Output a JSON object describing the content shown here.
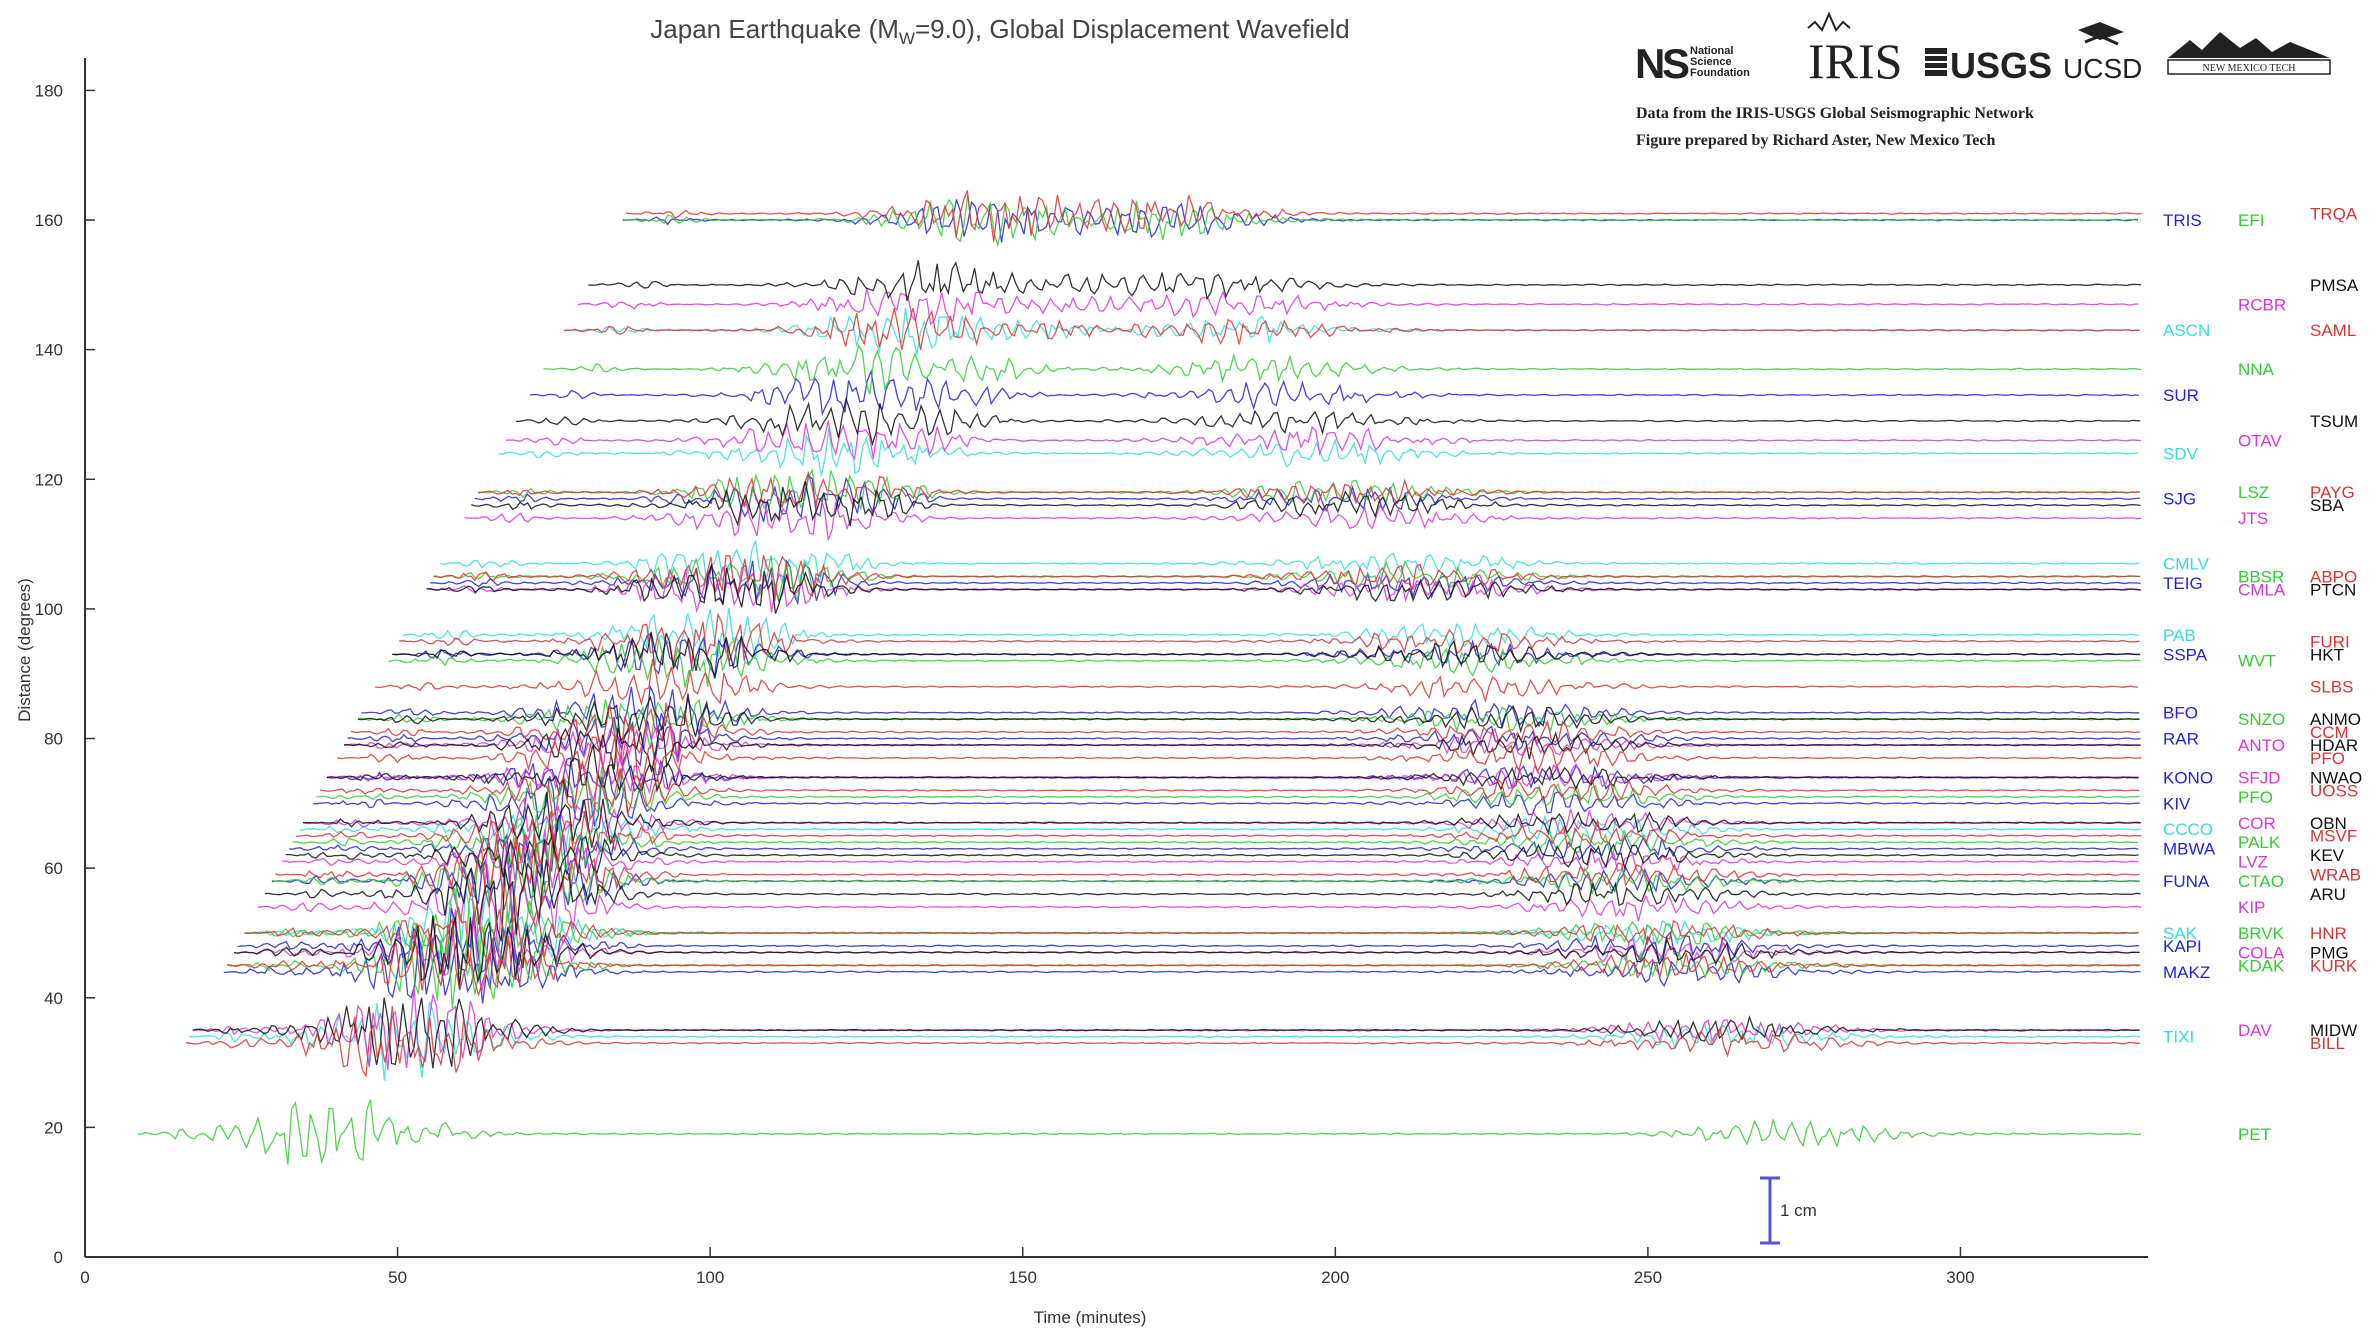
{
  "chart_data": {
    "type": "line",
    "title_prefix": "Japan Earthquake (M",
    "title_sub": "W",
    "title_suffix": "=9.0), Global Displacement Wavefield",
    "xlabel": "Time (minutes)",
    "ylabel": "Distance (degrees)",
    "xlim": [
      0,
      330
    ],
    "ylim": [
      0,
      185
    ],
    "xticks": [
      "0",
      "50",
      "100",
      "150",
      "200",
      "250",
      "300"
    ],
    "yticks": [
      "0",
      "20",
      "40",
      "60",
      "80",
      "100",
      "120",
      "140",
      "160",
      "180"
    ],
    "scale_bar_label": "1 cm",
    "colors": [
      "#2222dd",
      "#33cc33",
      "#dd3333",
      "#111111",
      "#dd33dd",
      "#33dddd"
    ],
    "station_columns": [
      [
        {
          "name": "TRIS",
          "y": 160,
          "color": "#2222dd"
        },
        {
          "name": "ASCN",
          "y": 143,
          "color": "#33dddd"
        },
        {
          "name": "SUR",
          "y": 133,
          "color": "#2222dd"
        },
        {
          "name": "SDV",
          "y": 124,
          "color": "#33dddd"
        },
        {
          "name": "SJG",
          "y": 117,
          "color": "#2222dd"
        },
        {
          "name": "CMLV",
          "y": 107,
          "color": "#33dddd"
        },
        {
          "name": "TEIG",
          "y": 104,
          "color": "#2222dd"
        },
        {
          "name": "PAB",
          "y": 96,
          "color": "#33dddd"
        },
        {
          "name": "SSPA",
          "y": 93,
          "color": "#2222dd"
        },
        {
          "name": "BFO",
          "y": 84,
          "color": "#2222dd"
        },
        {
          "name": "RAR",
          "y": 80,
          "color": "#2222dd"
        },
        {
          "name": "KONO",
          "y": 74,
          "color": "#2222dd"
        },
        {
          "name": "KIV",
          "y": 70,
          "color": "#2222dd"
        },
        {
          "name": "CCCO",
          "y": 66,
          "color": "#33dddd"
        },
        {
          "name": "MBWA",
          "y": 63,
          "color": "#2222dd"
        },
        {
          "name": "FUNA",
          "y": 58,
          "color": "#2222dd"
        },
        {
          "name": "SAK",
          "y": 50,
          "color": "#33dddd"
        },
        {
          "name": "KAPI",
          "y": 48,
          "color": "#2222dd"
        },
        {
          "name": "MAKZ",
          "y": 44,
          "color": "#2222dd"
        },
        {
          "name": "TIXI",
          "y": 34,
          "color": "#33dddd"
        }
      ],
      [
        {
          "name": "EFI",
          "y": 160,
          "color": "#33cc33"
        },
        {
          "name": "RCBR",
          "y": 147,
          "color": "#dd33dd"
        },
        {
          "name": "NNA",
          "y": 137,
          "color": "#33cc33"
        },
        {
          "name": "OTAV",
          "y": 126,
          "color": "#dd33dd"
        },
        {
          "name": "LSZ",
          "y": 118,
          "color": "#33cc33"
        },
        {
          "name": "JTS",
          "y": 114,
          "color": "#dd33dd"
        },
        {
          "name": "BBSR",
          "y": 105,
          "color": "#33cc33"
        },
        {
          "name": "CMLA",
          "y": 103,
          "color": "#dd33dd"
        },
        {
          "name": "WVT",
          "y": 92,
          "color": "#33cc33"
        },
        {
          "name": "SNZO",
          "y": 83,
          "color": "#33cc33"
        },
        {
          "name": "ANTO",
          "y": 79,
          "color": "#dd33dd"
        },
        {
          "name": "SFJD",
          "y": 74,
          "color": "#dd33dd"
        },
        {
          "name": "PFO",
          "y": 71,
          "color": "#33cc33"
        },
        {
          "name": "COR",
          "y": 67,
          "color": "#dd33dd"
        },
        {
          "name": "PALK",
          "y": 64,
          "color": "#33cc33"
        },
        {
          "name": "LVZ",
          "y": 61,
          "color": "#dd33dd"
        },
        {
          "name": "CTAO",
          "y": 58,
          "color": "#33cc33"
        },
        {
          "name": "KIP",
          "y": 54,
          "color": "#dd33dd"
        },
        {
          "name": "BRVK",
          "y": 50,
          "color": "#33cc33"
        },
        {
          "name": "COLA",
          "y": 47,
          "color": "#dd33dd"
        },
        {
          "name": "KDAK",
          "y": 45,
          "color": "#33cc33"
        },
        {
          "name": "DAV",
          "y": 35,
          "color": "#dd33dd"
        },
        {
          "name": "PET",
          "y": 19,
          "color": "#33cc33"
        }
      ],
      [
        {
          "name": "TRQA",
          "y": 161,
          "color": "#dd3333"
        },
        {
          "name": "PMSA",
          "y": 150,
          "color": "#111111"
        },
        {
          "name": "SAML",
          "y": 143,
          "color": "#dd3333"
        },
        {
          "name": "TSUM",
          "y": 129,
          "color": "#111111"
        },
        {
          "name": "PAYG",
          "y": 118,
          "color": "#dd3333"
        },
        {
          "name": "SBA",
          "y": 116,
          "color": "#111111"
        },
        {
          "name": "ABPO",
          "y": 105,
          "color": "#dd3333"
        },
        {
          "name": "PTCN",
          "y": 103,
          "color": "#111111"
        },
        {
          "name": "FURI",
          "y": 95,
          "color": "#dd3333"
        },
        {
          "name": "HKT",
          "y": 93,
          "color": "#111111"
        },
        {
          "name": "SLBS",
          "y": 88,
          "color": "#dd3333"
        },
        {
          "name": "ANMO",
          "y": 83,
          "color": "#111111"
        },
        {
          "name": "CCM",
          "y": 81,
          "color": "#dd3333"
        },
        {
          "name": "HDAR",
          "y": 79,
          "color": "#111111"
        },
        {
          "name": "PFO",
          "y": 77,
          "color": "#dd3333"
        },
        {
          "name": "NWAO",
          "y": 74,
          "color": "#111111"
        },
        {
          "name": "UOSS",
          "y": 72,
          "color": "#dd3333"
        },
        {
          "name": "OBN",
          "y": 67,
          "color": "#111111"
        },
        {
          "name": "MSVF",
          "y": 65,
          "color": "#dd3333"
        },
        {
          "name": "KEV",
          "y": 62,
          "color": "#111111"
        },
        {
          "name": "WRAB",
          "y": 59,
          "color": "#dd3333"
        },
        {
          "name": "ARU",
          "y": 56,
          "color": "#111111"
        },
        {
          "name": "HNR",
          "y": 50,
          "color": "#dd3333"
        },
        {
          "name": "PMG",
          "y": 47,
          "color": "#111111"
        },
        {
          "name": "KURK",
          "y": 45,
          "color": "#dd3333"
        },
        {
          "name": "MIDW",
          "y": 35,
          "color": "#111111"
        },
        {
          "name": "BILL",
          "y": 33,
          "color": "#dd3333"
        }
      ]
    ]
  },
  "credits": {
    "line1": "Data from the IRIS-USGS Global Seismographic Network",
    "line2": "Figure prepared by Richard Aster, New Mexico Tech"
  },
  "logos": {
    "nsf": "National Science Foundation",
    "iris": "IRIS",
    "usgs": "USGS",
    "ucsd": "UCSD",
    "nmt": "NEW MEXICO TECH"
  }
}
